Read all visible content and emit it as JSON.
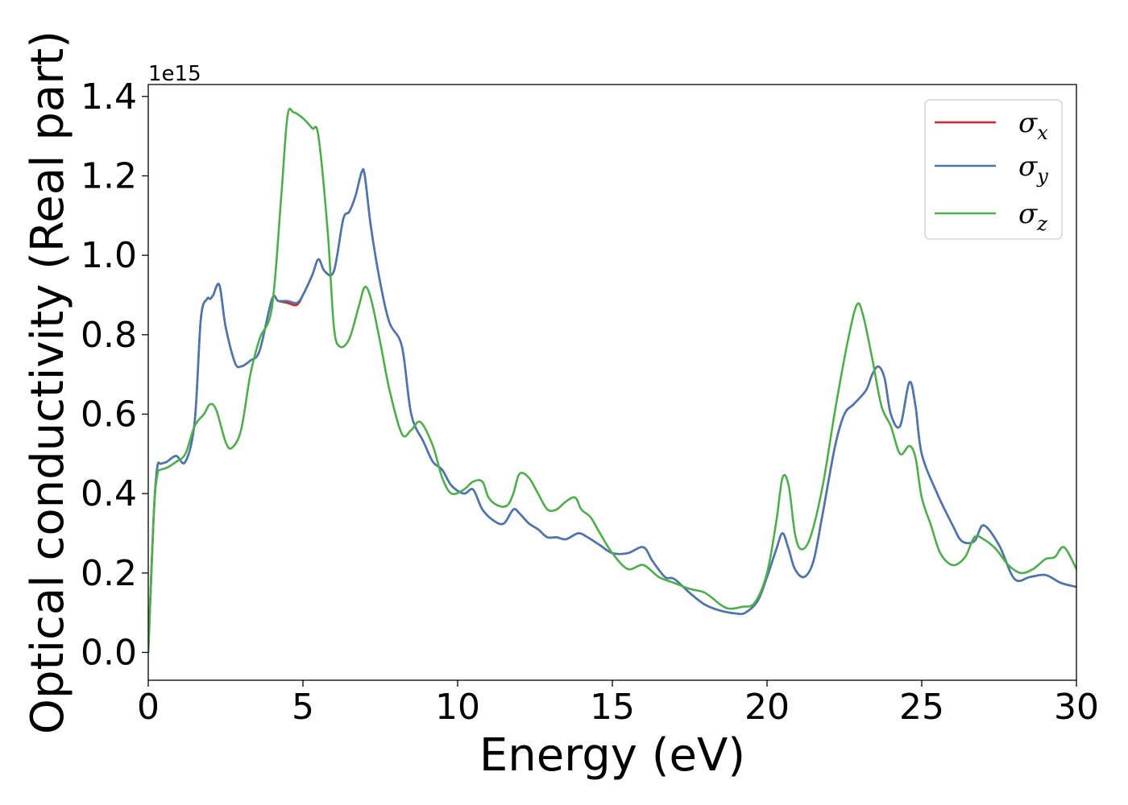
{
  "chart_data": {
    "type": "line",
    "xlabel": "Energy (eV)",
    "ylabel": "Optical conductivity (Real part)",
    "y_offset_text": "1e15",
    "xlim": [
      0,
      30
    ],
    "ylim": [
      -0.07,
      1.43
    ],
    "x_ticks": [
      0,
      5,
      10,
      15,
      20,
      25,
      30
    ],
    "x_tick_labels": [
      "0",
      "5",
      "10",
      "15",
      "20",
      "25",
      "30"
    ],
    "y_ticks": [
      0.0,
      0.2,
      0.4,
      0.6,
      0.8,
      1.0,
      1.2,
      1.4
    ],
    "y_tick_labels": [
      "0.0",
      "0.2",
      "0.4",
      "0.6",
      "0.8",
      "1.0",
      "1.2",
      "1.4"
    ],
    "grid": false,
    "legend_position": "top-right",
    "series": [
      {
        "name": "σx",
        "color": "#d62728",
        "x": [
          0,
          0.1,
          0.2,
          0.3,
          0.4,
          0.6,
          0.9,
          1.2,
          1.5,
          1.7,
          1.9,
          2.0,
          2.1,
          2.3,
          2.5,
          2.8,
          3.0,
          3.3,
          3.6,
          4.0,
          4.2,
          4.5,
          4.8,
          5.0,
          5.3,
          5.5,
          5.7,
          6.0,
          6.3,
          6.5,
          6.7,
          6.9,
          7.0,
          7.2,
          7.5,
          7.8,
          8.2,
          8.5,
          8.9,
          9.2,
          9.5,
          9.8,
          10.2,
          10.5,
          10.8,
          11.2,
          11.5,
          11.8,
          12.0,
          12.3,
          12.6,
          12.9,
          13.2,
          13.5,
          13.9,
          14.2,
          14.6,
          15.0,
          15.5,
          16.0,
          16.3,
          16.7,
          17.0,
          17.5,
          18.0,
          18.5,
          19.0,
          19.3,
          19.7,
          20.0,
          20.3,
          20.5,
          20.7,
          20.9,
          21.2,
          21.5,
          21.8,
          22.2,
          22.5,
          22.8,
          23.2,
          23.4,
          23.6,
          23.8,
          24.0,
          24.3,
          24.6,
          24.8,
          25.0,
          25.5,
          26.0,
          26.3,
          26.7,
          27.0,
          27.5,
          28.0,
          28.5,
          29.0,
          29.5,
          30.0
        ],
        "values": [
          0.0,
          0.2,
          0.38,
          0.47,
          0.475,
          0.48,
          0.495,
          0.48,
          0.58,
          0.84,
          0.89,
          0.89,
          0.9,
          0.925,
          0.82,
          0.73,
          0.72,
          0.735,
          0.76,
          0.89,
          0.885,
          0.88,
          0.875,
          0.9,
          0.95,
          0.99,
          0.96,
          0.96,
          1.09,
          1.11,
          1.15,
          1.21,
          1.2,
          1.07,
          0.93,
          0.83,
          0.77,
          0.6,
          0.53,
          0.48,
          0.46,
          0.42,
          0.4,
          0.41,
          0.36,
          0.33,
          0.325,
          0.36,
          0.35,
          0.325,
          0.31,
          0.29,
          0.29,
          0.285,
          0.3,
          0.29,
          0.27,
          0.25,
          0.25,
          0.265,
          0.23,
          0.19,
          0.185,
          0.15,
          0.12,
          0.105,
          0.098,
          0.1,
          0.13,
          0.19,
          0.26,
          0.3,
          0.26,
          0.21,
          0.19,
          0.23,
          0.35,
          0.52,
          0.6,
          0.625,
          0.66,
          0.7,
          0.72,
          0.69,
          0.6,
          0.57,
          0.68,
          0.62,
          0.5,
          0.4,
          0.32,
          0.28,
          0.28,
          0.32,
          0.27,
          0.185,
          0.19,
          0.195,
          0.175,
          0.165
        ]
      },
      {
        "name": "σy",
        "color": "#4878b0",
        "x": [
          0,
          0.1,
          0.2,
          0.3,
          0.4,
          0.6,
          0.9,
          1.2,
          1.5,
          1.7,
          1.9,
          2.0,
          2.1,
          2.3,
          2.5,
          2.8,
          3.0,
          3.3,
          3.6,
          4.0,
          4.2,
          4.5,
          4.8,
          5.0,
          5.3,
          5.5,
          5.7,
          6.0,
          6.3,
          6.5,
          6.7,
          6.9,
          7.0,
          7.2,
          7.5,
          7.8,
          8.2,
          8.5,
          8.9,
          9.2,
          9.5,
          9.8,
          10.2,
          10.5,
          10.8,
          11.2,
          11.5,
          11.8,
          12.0,
          12.3,
          12.6,
          12.9,
          13.2,
          13.5,
          13.9,
          14.2,
          14.6,
          15.0,
          15.5,
          16.0,
          16.3,
          16.7,
          17.0,
          17.5,
          18.0,
          18.5,
          19.0,
          19.3,
          19.7,
          20.0,
          20.3,
          20.5,
          20.7,
          20.9,
          21.2,
          21.5,
          21.8,
          22.2,
          22.5,
          22.8,
          23.2,
          23.4,
          23.6,
          23.8,
          24.0,
          24.3,
          24.6,
          24.8,
          25.0,
          25.5,
          26.0,
          26.3,
          26.7,
          27.0,
          27.5,
          28.0,
          28.5,
          29.0,
          29.5,
          30.0
        ],
        "values": [
          0.0,
          0.2,
          0.38,
          0.47,
          0.475,
          0.48,
          0.495,
          0.48,
          0.58,
          0.84,
          0.89,
          0.89,
          0.9,
          0.925,
          0.82,
          0.73,
          0.72,
          0.735,
          0.76,
          0.89,
          0.885,
          0.885,
          0.88,
          0.9,
          0.95,
          0.99,
          0.96,
          0.96,
          1.09,
          1.11,
          1.15,
          1.21,
          1.2,
          1.07,
          0.93,
          0.83,
          0.77,
          0.6,
          0.53,
          0.48,
          0.46,
          0.42,
          0.4,
          0.41,
          0.36,
          0.33,
          0.325,
          0.36,
          0.35,
          0.325,
          0.31,
          0.29,
          0.29,
          0.285,
          0.3,
          0.29,
          0.27,
          0.25,
          0.25,
          0.265,
          0.23,
          0.19,
          0.185,
          0.15,
          0.12,
          0.105,
          0.098,
          0.1,
          0.13,
          0.19,
          0.26,
          0.3,
          0.26,
          0.21,
          0.19,
          0.23,
          0.35,
          0.52,
          0.6,
          0.625,
          0.66,
          0.7,
          0.72,
          0.69,
          0.6,
          0.57,
          0.68,
          0.62,
          0.5,
          0.4,
          0.32,
          0.28,
          0.28,
          0.32,
          0.27,
          0.185,
          0.19,
          0.195,
          0.175,
          0.165
        ]
      },
      {
        "name": "σz",
        "color": "#4daf4a",
        "x": [
          0,
          0.1,
          0.2,
          0.3,
          0.4,
          0.6,
          0.9,
          1.2,
          1.5,
          1.8,
          2.0,
          2.2,
          2.5,
          2.7,
          3.0,
          3.3,
          3.6,
          4.0,
          4.3,
          4.5,
          4.7,
          5.0,
          5.3,
          5.5,
          5.8,
          6.0,
          6.2,
          6.5,
          6.8,
          7.0,
          7.2,
          7.5,
          7.8,
          8.2,
          8.5,
          8.8,
          9.2,
          9.5,
          9.8,
          10.2,
          10.5,
          10.8,
          11.0,
          11.3,
          11.6,
          11.8,
          12.0,
          12.3,
          12.6,
          12.9,
          13.2,
          13.5,
          13.8,
          14.0,
          14.3,
          14.6,
          15.0,
          15.5,
          16.0,
          16.5,
          17.0,
          17.5,
          18.0,
          18.5,
          18.8,
          19.2,
          19.6,
          20.0,
          20.3,
          20.5,
          20.7,
          20.9,
          21.1,
          21.4,
          21.8,
          22.2,
          22.6,
          22.9,
          23.1,
          23.4,
          23.7,
          24.0,
          24.3,
          24.6,
          24.8,
          25.0,
          25.3,
          25.6,
          26.0,
          26.4,
          26.7,
          27.0,
          27.4,
          27.8,
          28.2,
          28.6,
          29.0,
          29.3,
          29.6,
          30.0
        ],
        "values": [
          0.0,
          0.2,
          0.38,
          0.45,
          0.46,
          0.465,
          0.48,
          0.5,
          0.57,
          0.6,
          0.625,
          0.61,
          0.53,
          0.515,
          0.56,
          0.7,
          0.79,
          0.87,
          1.15,
          1.35,
          1.36,
          1.345,
          1.32,
          1.3,
          1.06,
          0.82,
          0.77,
          0.79,
          0.87,
          0.92,
          0.89,
          0.78,
          0.66,
          0.55,
          0.56,
          0.58,
          0.52,
          0.44,
          0.4,
          0.41,
          0.43,
          0.43,
          0.39,
          0.37,
          0.37,
          0.4,
          0.45,
          0.44,
          0.4,
          0.36,
          0.36,
          0.38,
          0.39,
          0.36,
          0.34,
          0.3,
          0.25,
          0.21,
          0.22,
          0.19,
          0.175,
          0.16,
          0.15,
          0.12,
          0.11,
          0.115,
          0.125,
          0.2,
          0.33,
          0.44,
          0.42,
          0.3,
          0.26,
          0.29,
          0.42,
          0.61,
          0.78,
          0.875,
          0.85,
          0.74,
          0.62,
          0.57,
          0.5,
          0.52,
          0.49,
          0.39,
          0.32,
          0.25,
          0.22,
          0.24,
          0.29,
          0.285,
          0.26,
          0.22,
          0.2,
          0.21,
          0.235,
          0.24,
          0.265,
          0.21
        ]
      }
    ]
  }
}
